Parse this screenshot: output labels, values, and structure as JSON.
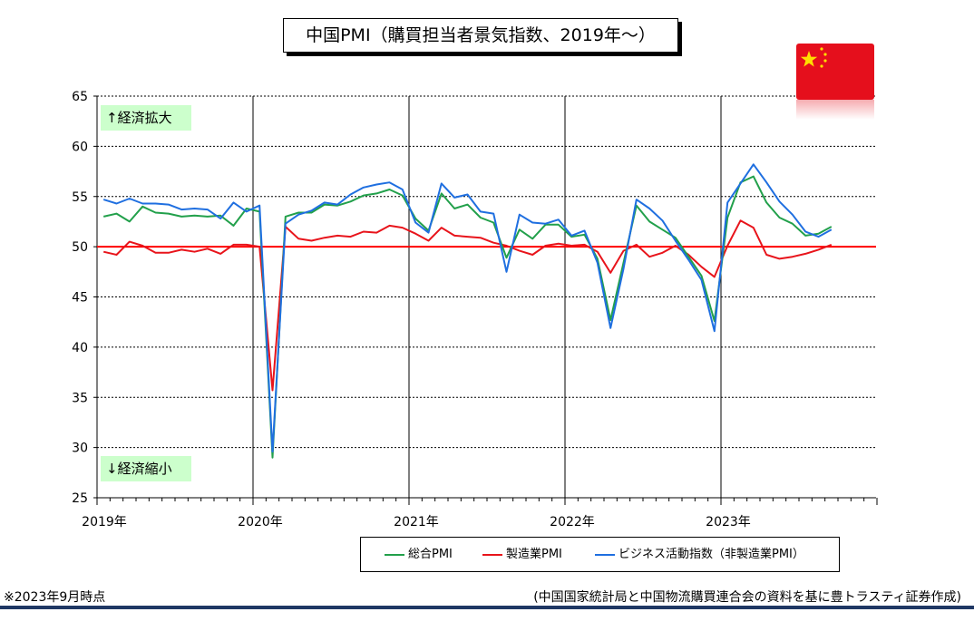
{
  "title": "中国PMI（購買担当者景気指数、2019年～）",
  "expand_label": "↑経済拡大",
  "contract_label": "↓経済縮小",
  "note_left": "※2023年9月時点",
  "note_right": "(中国国家統計局と中国物流購買連合会の資料を基に豊トラスティ証券作成)",
  "flag_icon": "china-flag-icon",
  "colors": {
    "composite": "#22a04b",
    "manufacturing": "#e8141b",
    "non_manufacturing": "#1f6fe0",
    "reference": "#ff0000"
  },
  "chart_data": {
    "type": "line",
    "x": [
      "2019-01",
      "2019-02",
      "2019-03",
      "2019-04",
      "2019-05",
      "2019-06",
      "2019-07",
      "2019-08",
      "2019-09",
      "2019-10",
      "2019-11",
      "2019-12",
      "2020-01",
      "2020-02",
      "2020-03",
      "2020-04",
      "2020-05",
      "2020-06",
      "2020-07",
      "2020-08",
      "2020-09",
      "2020-10",
      "2020-11",
      "2020-12",
      "2021-01",
      "2021-02",
      "2021-03",
      "2021-04",
      "2021-05",
      "2021-06",
      "2021-07",
      "2021-08",
      "2021-09",
      "2021-10",
      "2021-11",
      "2021-12",
      "2022-01",
      "2022-02",
      "2022-03",
      "2022-04",
      "2022-05",
      "2022-06",
      "2022-07",
      "2022-08",
      "2022-09",
      "2022-10",
      "2022-11",
      "2022-12",
      "2023-01",
      "2023-02",
      "2023-03",
      "2023-04",
      "2023-05",
      "2023-06",
      "2023-07",
      "2023-08",
      "2023-09"
    ],
    "x_tick_labels": [
      "2019年",
      "2020年",
      "2021年",
      "2022年",
      "2023年"
    ],
    "series": [
      {
        "name": "総合PMI",
        "values": [
          53.0,
          53.3,
          52.5,
          54.0,
          53.4,
          53.3,
          53.0,
          53.1,
          53.0,
          53.1,
          52.1,
          53.8,
          53.5,
          29.0,
          53.0,
          53.4,
          53.4,
          54.2,
          54.1,
          54.5,
          55.1,
          55.3,
          55.7,
          55.1,
          52.8,
          51.6,
          55.3,
          53.8,
          54.2,
          52.9,
          52.4,
          48.9,
          51.7,
          50.8,
          52.2,
          52.2,
          51.0,
          51.2,
          48.8,
          42.7,
          48.4,
          54.1,
          52.5,
          51.7,
          50.9,
          49.0,
          47.1,
          42.6,
          52.9,
          56.4,
          57.0,
          54.4,
          52.9,
          52.3,
          51.1,
          51.3,
          52.0
        ]
      },
      {
        "name": "製造業PMI",
        "values": [
          49.5,
          49.2,
          50.5,
          50.1,
          49.4,
          49.4,
          49.7,
          49.5,
          49.8,
          49.3,
          50.2,
          50.2,
          50.0,
          35.7,
          52.0,
          50.8,
          50.6,
          50.9,
          51.1,
          51.0,
          51.5,
          51.4,
          52.1,
          51.9,
          51.3,
          50.6,
          51.9,
          51.1,
          51.0,
          50.9,
          50.4,
          50.1,
          49.6,
          49.2,
          50.1,
          50.3,
          50.1,
          50.2,
          49.5,
          47.4,
          49.6,
          50.2,
          49.0,
          49.4,
          50.1,
          49.2,
          48.0,
          47.0,
          50.1,
          52.6,
          51.9,
          49.2,
          48.8,
          49.0,
          49.3,
          49.7,
          50.2
        ]
      },
      {
        "name": "ビジネス活動指数（非製造業PMI）",
        "values": [
          54.7,
          54.3,
          54.8,
          54.3,
          54.3,
          54.2,
          53.7,
          53.8,
          53.7,
          52.8,
          54.4,
          53.5,
          54.1,
          29.6,
          52.3,
          53.2,
          53.6,
          54.4,
          54.2,
          55.2,
          55.9,
          56.2,
          56.4,
          55.7,
          52.4,
          51.4,
          56.3,
          54.9,
          55.2,
          53.5,
          53.3,
          47.5,
          53.2,
          52.4,
          52.3,
          52.7,
          51.1,
          51.6,
          48.4,
          41.9,
          47.8,
          54.7,
          53.8,
          52.6,
          50.6,
          48.7,
          46.7,
          41.6,
          54.4,
          56.3,
          58.2,
          56.4,
          54.5,
          53.2,
          51.5,
          51.0,
          51.7
        ]
      }
    ],
    "reference_line": 50,
    "ylim": [
      25,
      65
    ],
    "yticks": [
      25,
      30,
      35,
      40,
      45,
      50,
      55,
      60,
      65
    ],
    "grid": true,
    "legend_position": "bottom"
  }
}
